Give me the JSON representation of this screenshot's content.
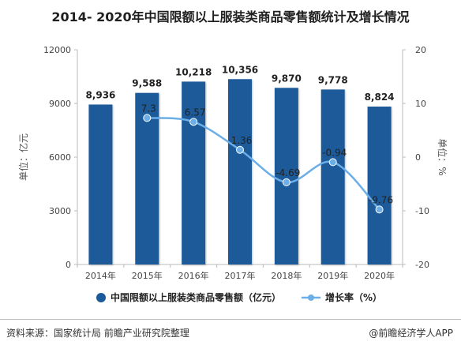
{
  "title": "2014- 2020年中国限额以上服装类商品零售额统计及增长情况",
  "footer": {
    "source": "资料来源：国家统计局 前瞻产业研究院整理",
    "credit": "@前瞻经济学人APP"
  },
  "colors": {
    "bar": "#1a5a9a",
    "line": "#6baee8",
    "axis": "#bbbbbb"
  },
  "chart_data": {
    "type": "bar",
    "categories": [
      "2014年",
      "2015年",
      "2016年",
      "2017年",
      "2018年",
      "2019年",
      "2020年"
    ],
    "series": [
      {
        "name": "中国限额以上服装类商品零售额（亿元）",
        "type": "bar",
        "axis": "left",
        "values": [
          8936,
          9588,
          10218,
          10356,
          9870,
          9778,
          8824
        ],
        "labels": [
          "8,936",
          "9,588",
          "10,218",
          "10,356",
          "9,870",
          "9,778",
          "8,824"
        ]
      },
      {
        "name": "增长率（%）",
        "type": "line",
        "axis": "right",
        "values": [
          null,
          7.3,
          6.57,
          1.36,
          -4.69,
          -0.94,
          -9.76
        ],
        "labels": [
          "",
          "7.3",
          "6.57",
          "1.36",
          "-4.69",
          "-0.94",
          "-9.76"
        ]
      }
    ],
    "ylabel": "单位：亿元",
    "y2label": "单位：%",
    "ylim": [
      0,
      12000
    ],
    "yticks": [
      "0",
      "3000",
      "6000",
      "9000",
      "12000"
    ],
    "y2lim": [
      -20,
      20
    ],
    "y2ticks": [
      "-20",
      "-10",
      "0",
      "10",
      "20"
    ],
    "legend_position": "bottom",
    "grid": false
  }
}
